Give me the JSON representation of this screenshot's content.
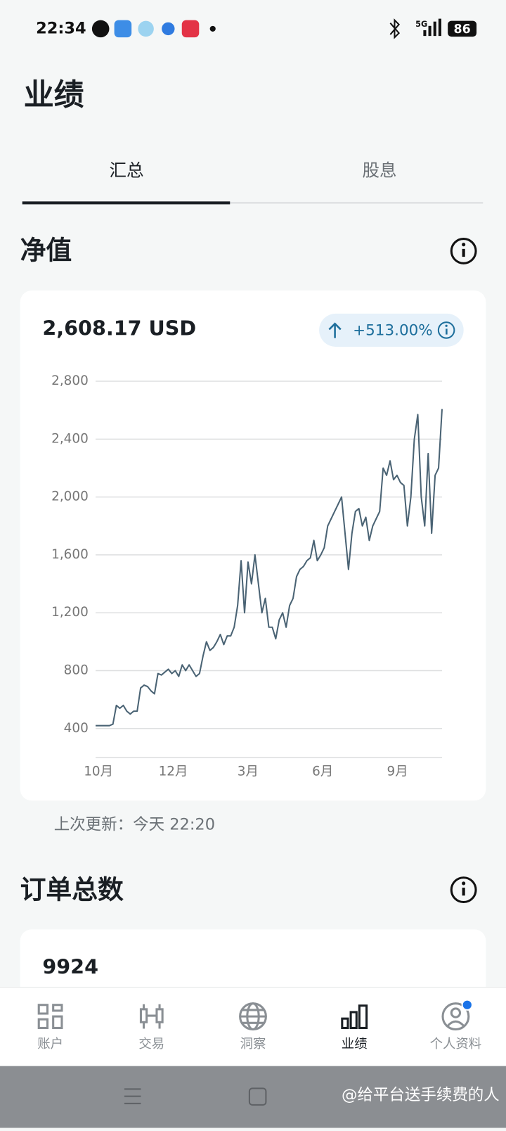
{
  "status_bar": {
    "time": "22:34",
    "network": "5G",
    "battery": "86"
  },
  "header": {
    "title": "业绩"
  },
  "tabs": [
    "汇总",
    "股息"
  ],
  "net_value": {
    "title": "净值",
    "amount": "2,608.17 USD",
    "change": "+513.00%",
    "updated": "上次更新：今天 22:20"
  },
  "chart_data": {
    "type": "line",
    "color": "#4a6374",
    "values": [
      420,
      420,
      420,
      420,
      420,
      430,
      560,
      540,
      560,
      520,
      500,
      520,
      520,
      680,
      700,
      690,
      660,
      640,
      780,
      770,
      790,
      810,
      780,
      800,
      760,
      840,
      800,
      840,
      800,
      760,
      780,
      900,
      1000,
      940,
      960,
      1000,
      1050,
      980,
      1040,
      1040,
      1100,
      1250,
      1560,
      1200,
      1550,
      1400,
      1600,
      1400,
      1200,
      1300,
      1100,
      1100,
      1020,
      1150,
      1200,
      1100,
      1250,
      1300,
      1450,
      1500,
      1520,
      1560,
      1580,
      1700,
      1560,
      1600,
      1650,
      1800,
      1850,
      1900,
      1950,
      2000,
      1750,
      1500,
      1750,
      1900,
      1920,
      1800,
      1860,
      1700,
      1800,
      1850,
      1900,
      2200,
      2150,
      2250,
      2120,
      2150,
      2100,
      2080,
      1800,
      2000,
      2400,
      2570,
      2000,
      1800,
      2300,
      1750,
      2150,
      2200,
      2608
    ],
    "ylim": [
      200,
      2800
    ],
    "yticks": [
      {
        "value": 400,
        "label": "400"
      },
      {
        "value": 800,
        "label": "800"
      },
      {
        "value": 1200,
        "label": "1,200"
      },
      {
        "value": 1600,
        "label": "1,600"
      },
      {
        "value": 2000,
        "label": "2,000"
      },
      {
        "value": 2400,
        "label": "2,400"
      },
      {
        "value": 2800,
        "label": "2,800"
      }
    ],
    "xtick_labels": [
      "10月",
      "12月",
      "3月",
      "6月",
      "9月"
    ],
    "grid": true
  },
  "orders": {
    "title": "订单总数",
    "count": 9924
  },
  "nav": [
    "账户",
    "交易",
    "洞察",
    "业绩",
    "个人资料"
  ],
  "watermark": "@给平台送手续费的人"
}
